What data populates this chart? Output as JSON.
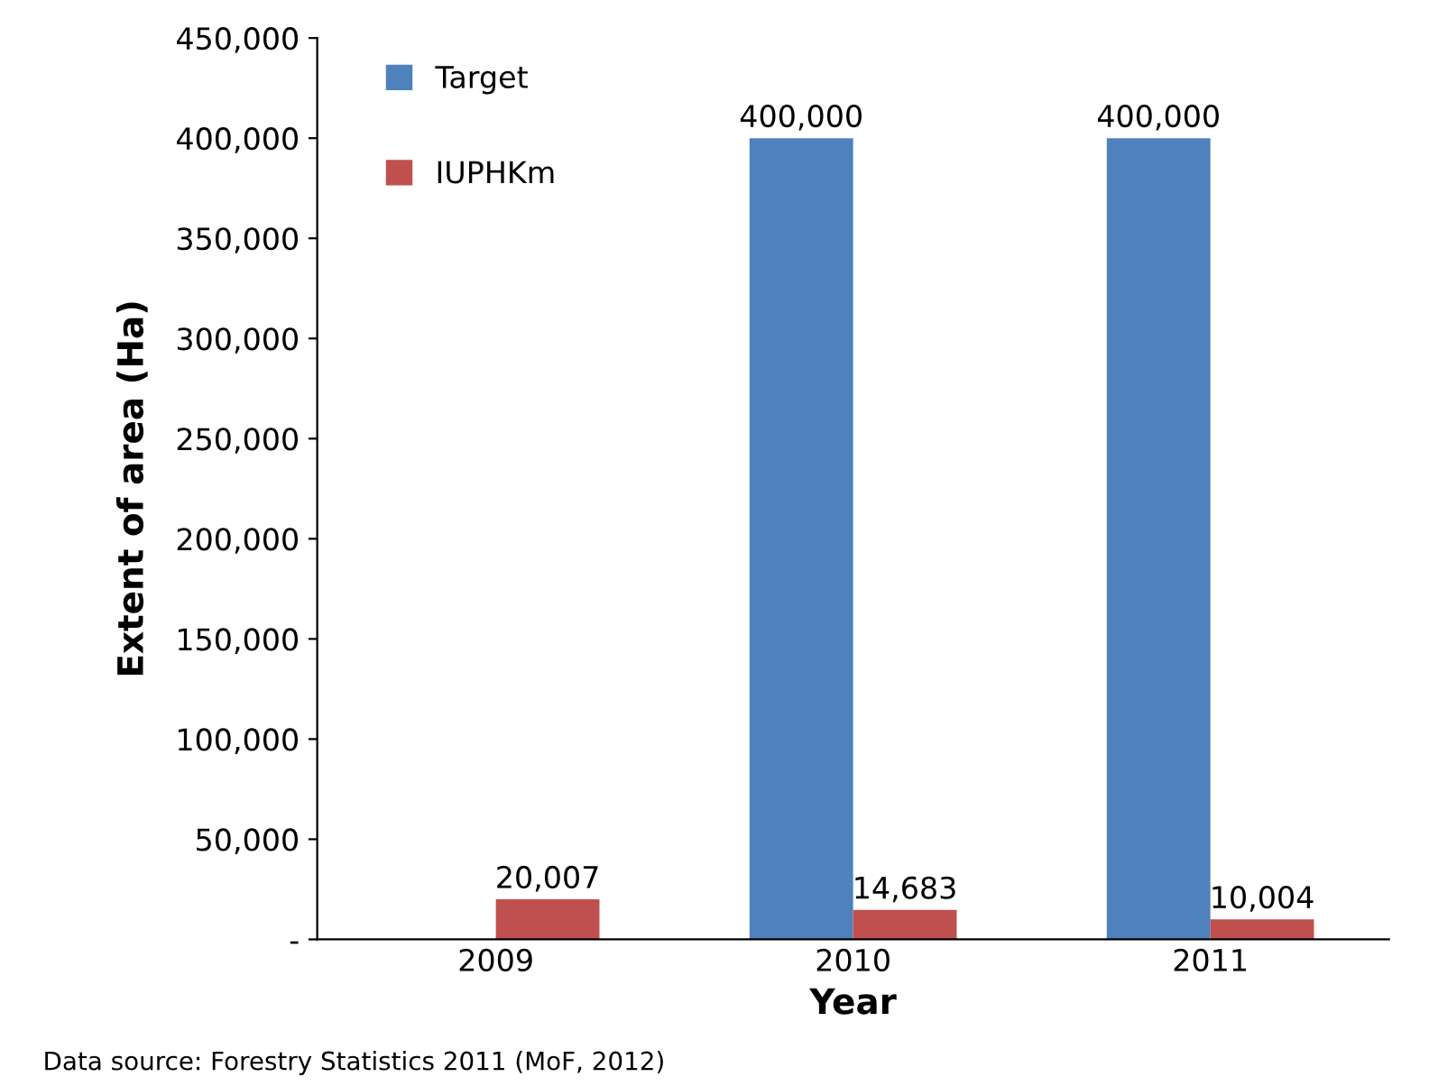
{
  "chart_data": {
    "type": "bar",
    "xlabel": "Year",
    "ylabel": "Extent of area (Ha)",
    "categories": [
      "2009",
      "2010",
      "2011"
    ],
    "series": [
      {
        "name": "Target",
        "color": "#4f81bd",
        "values": [
          null,
          400000,
          400000
        ],
        "value_labels": [
          null,
          "400,000",
          "400,000"
        ]
      },
      {
        "name": "IUPHKm",
        "color": "#c0504d",
        "values": [
          20007,
          14683,
          10004
        ],
        "value_labels": [
          "20,007",
          "14,683",
          "10,004"
        ]
      }
    ],
    "ylim": [
      0,
      450000
    ],
    "yticks": [
      {
        "value": 0,
        "label": "-"
      },
      {
        "value": 50000,
        "label": "50,000"
      },
      {
        "value": 100000,
        "label": "100,000"
      },
      {
        "value": 150000,
        "label": "150,000"
      },
      {
        "value": 200000,
        "label": "200,000"
      },
      {
        "value": 250000,
        "label": "250,000"
      },
      {
        "value": 300000,
        "label": "300,000"
      },
      {
        "value": 350000,
        "label": "350,000"
      },
      {
        "value": 400000,
        "label": "400,000"
      },
      {
        "value": 450000,
        "label": "450,000"
      }
    ],
    "grid": false,
    "legend": "top left",
    "annotations": [
      "Data source: Forestry Statistics 2011 (MoF, 2012)"
    ]
  }
}
